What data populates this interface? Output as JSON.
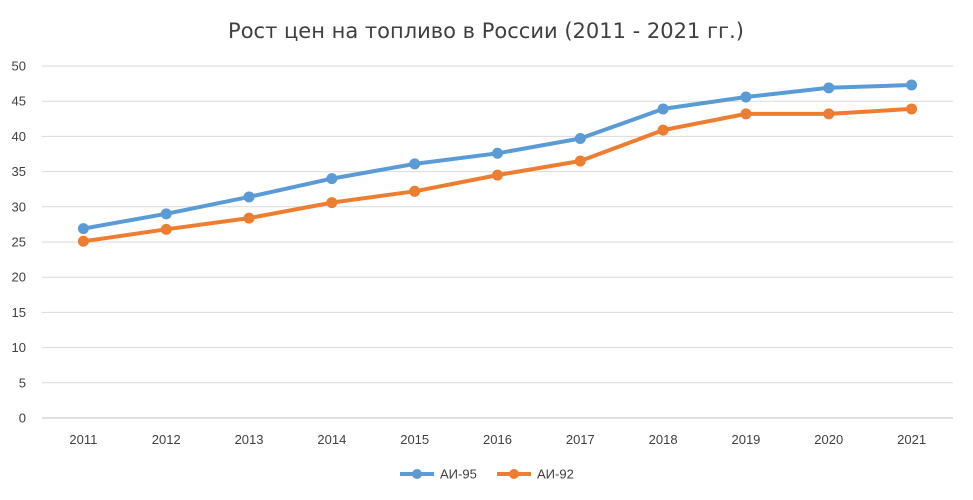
{
  "chart_data": {
    "type": "line",
    "title": "Рост цен на топливо в России (2011 - 2021 гг.)",
    "xlabel": "",
    "ylabel": "",
    "categories": [
      "2011",
      "2012",
      "2013",
      "2014",
      "2015",
      "2016",
      "2017",
      "2018",
      "2019",
      "2020",
      "2021"
    ],
    "ylim": [
      0,
      50
    ],
    "yticks": [
      "0",
      "5",
      "10",
      "15",
      "20",
      "25",
      "30",
      "35",
      "40",
      "45",
      "50"
    ],
    "grid": true,
    "legend_position": "bottom",
    "series": [
      {
        "name": "АИ-95",
        "color": "#5B9BD5",
        "values": [
          26.9,
          29.0,
          31.4,
          34.0,
          36.1,
          37.6,
          39.7,
          43.9,
          45.6,
          46.9,
          47.3
        ]
      },
      {
        "name": "АИ-92",
        "color": "#ED7D31",
        "values": [
          25.1,
          26.8,
          28.4,
          30.6,
          32.2,
          34.5,
          36.5,
          40.9,
          43.2,
          43.2,
          43.9
        ]
      }
    ]
  }
}
